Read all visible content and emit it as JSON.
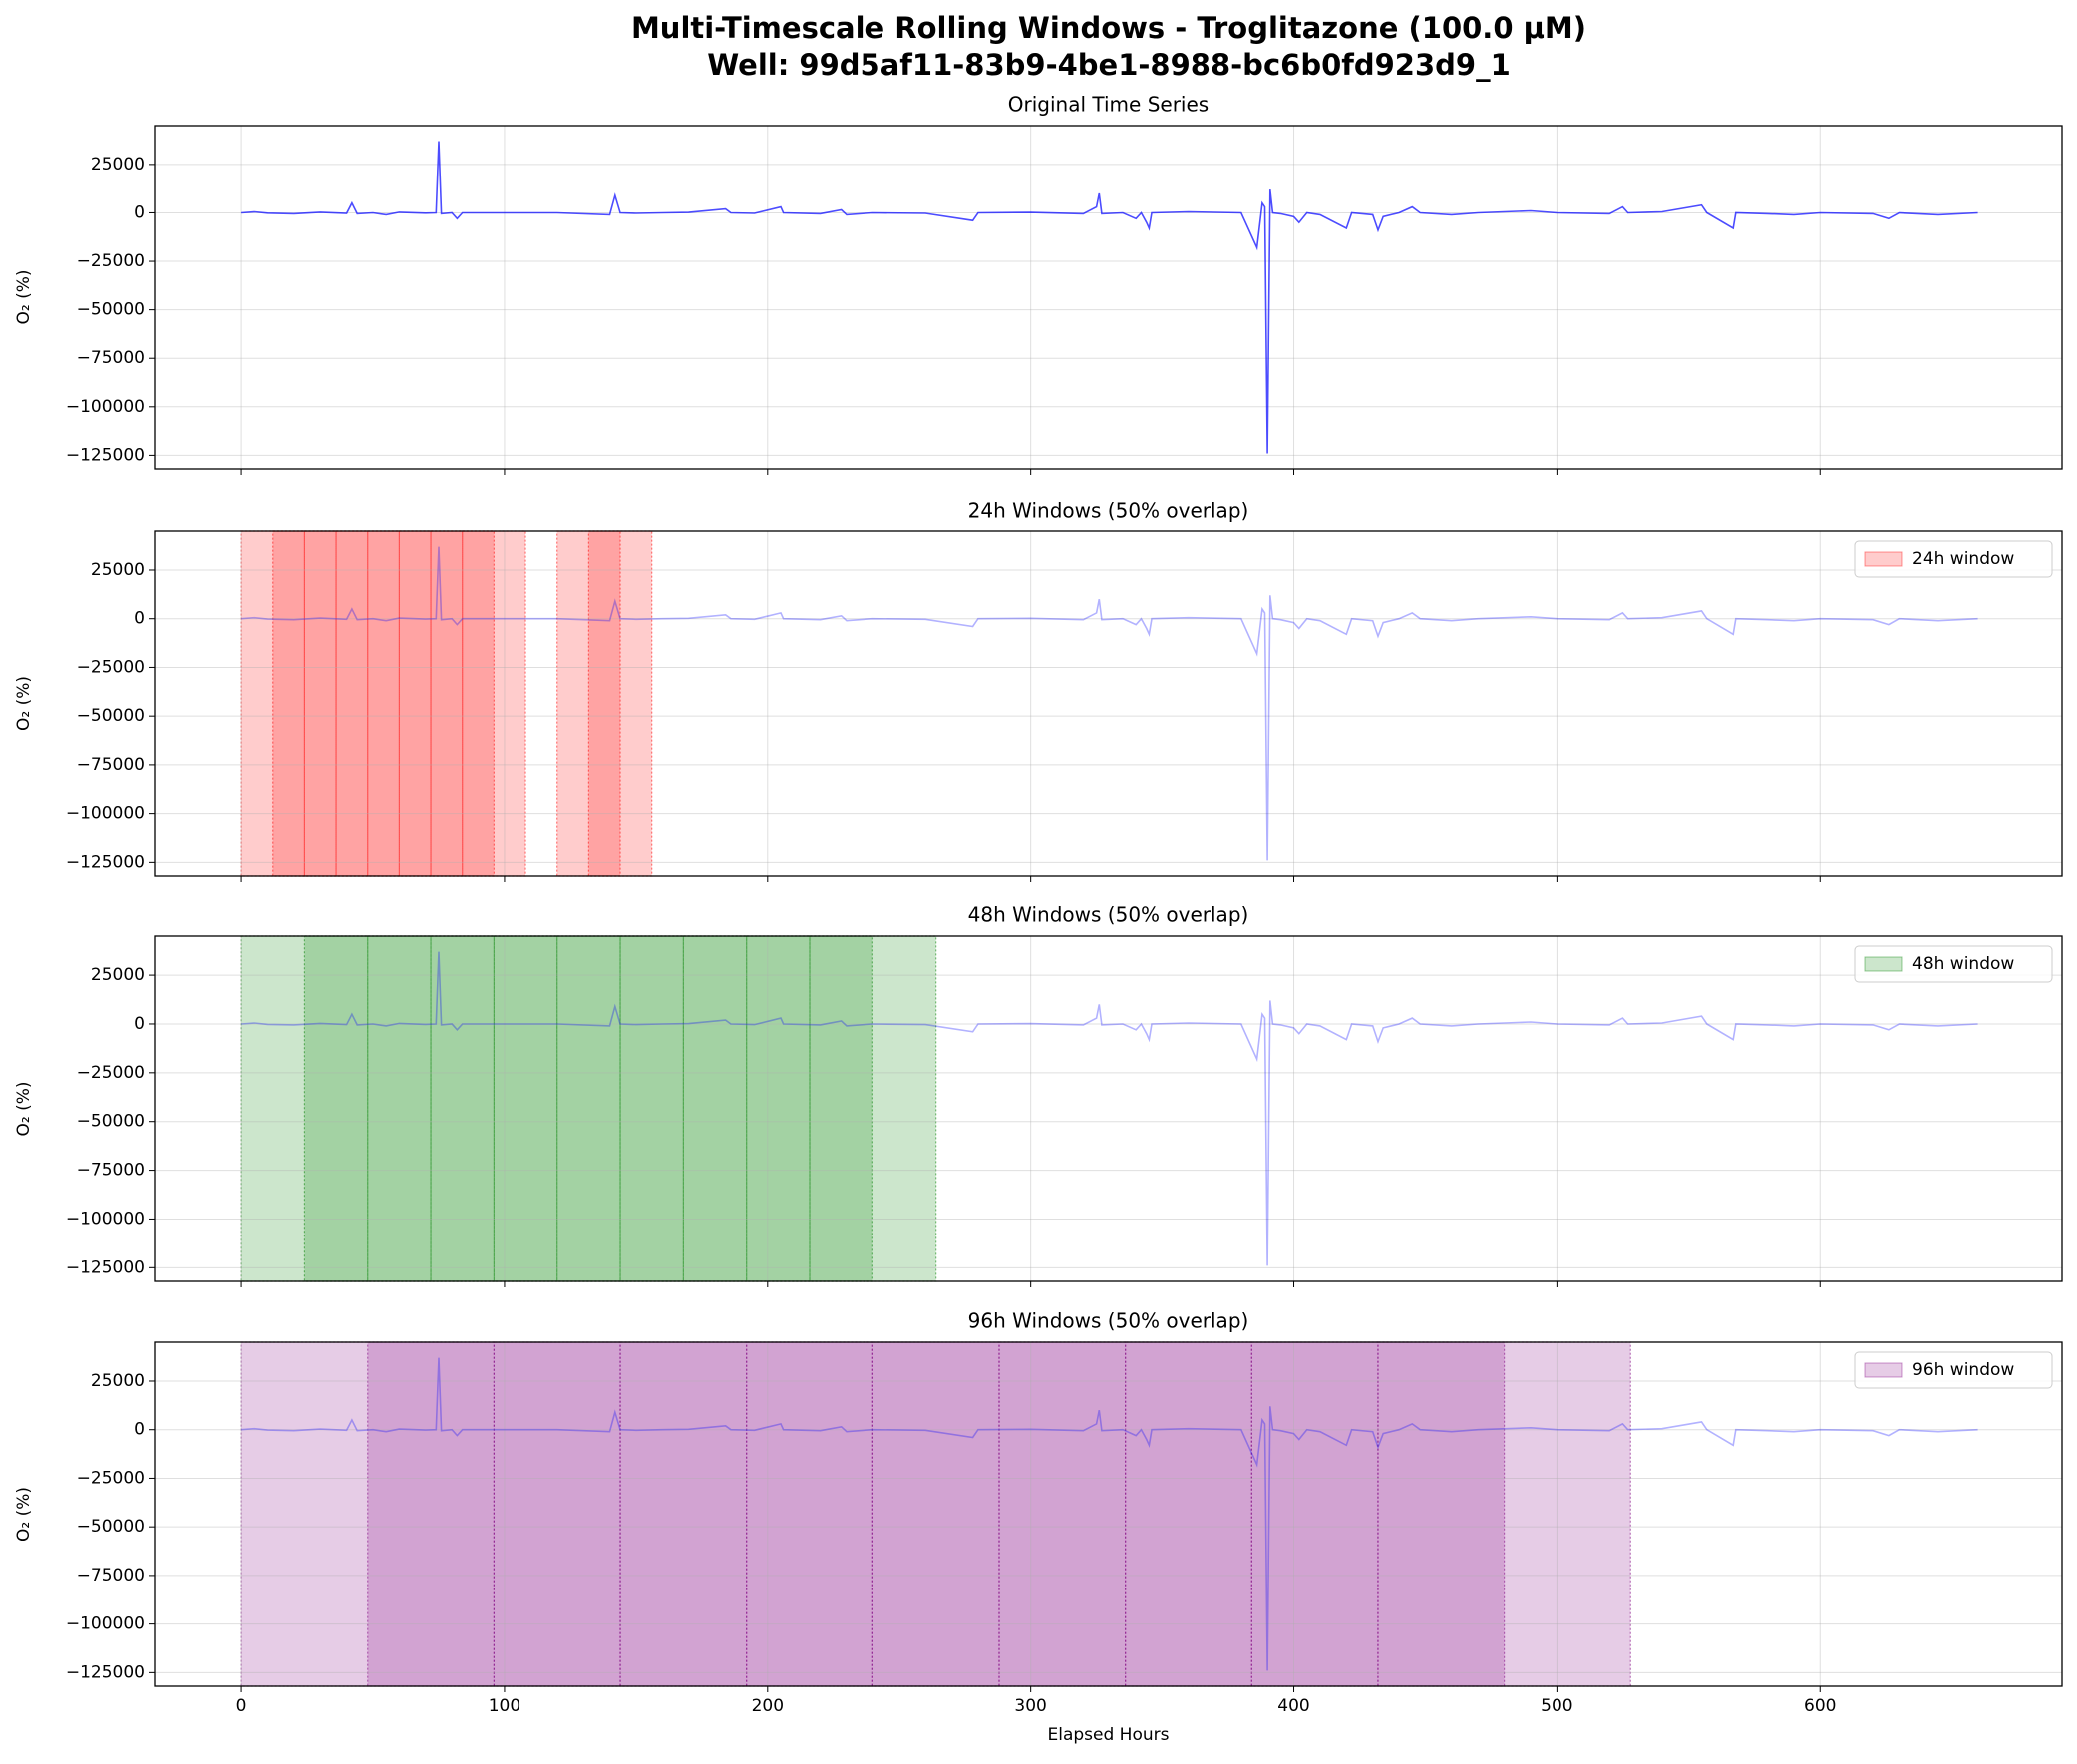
{
  "title": "Multi-Timescale Rolling Windows - Troglitazone (100.0 μM)",
  "subtitle": "Well: 99d5af11-83b9-4be1-8988-bc6b0fd923d9_1",
  "chart_data": [
    {
      "type": "line",
      "title": "Original Time Series",
      "ylabel": "O₂ (%)",
      "x": [
        0,
        5,
        10,
        20,
        30,
        40,
        42,
        44,
        50,
        55,
        60,
        70,
        74,
        75,
        76,
        80,
        82,
        84,
        100,
        120,
        140,
        142,
        144,
        150,
        160,
        170,
        184,
        186,
        195,
        205,
        206,
        220,
        228,
        230,
        240,
        260,
        278,
        280,
        300,
        320,
        325,
        326,
        327,
        335,
        340,
        342,
        344,
        345,
        346,
        360,
        380,
        386,
        388,
        389,
        390,
        391,
        392,
        395,
        400,
        402,
        405,
        410,
        420,
        422,
        430,
        432,
        434,
        440,
        445,
        448,
        460,
        470,
        490,
        500,
        520,
        525,
        527,
        540,
        555,
        557,
        567,
        568,
        580,
        590,
        600,
        620,
        626,
        630,
        645,
        660
      ],
      "series": [
        {
          "name": "O₂",
          "color": "#0000ff",
          "values": [
            0,
            500,
            -200,
            -500,
            300,
            -300,
            5000,
            -500,
            0,
            -1000,
            300,
            -200,
            0,
            37000,
            -500,
            0,
            -3000,
            0,
            0,
            0,
            -1000,
            9000,
            0,
            -300,
            0,
            200,
            2000,
            0,
            -300,
            3000,
            0,
            -500,
            1500,
            -1000,
            0,
            -300,
            -4000,
            0,
            200,
            -500,
            3000,
            10000,
            -500,
            0,
            -3000,
            0,
            -5000,
            -8000,
            0,
            500,
            0,
            -18000,
            5000,
            3000,
            -124000,
            12000,
            0,
            -500,
            -2000,
            -5000,
            0,
            -1000,
            -8000,
            0,
            -1000,
            -9000,
            -2000,
            0,
            3000,
            0,
            -1000,
            0,
            1000,
            0,
            -500,
            3000,
            0,
            500,
            4000,
            0,
            -8000,
            0,
            -500,
            -1000,
            0,
            -500,
            -3000,
            0,
            -1000,
            0
          ]
        }
      ],
      "xlim": [
        -33,
        692
      ],
      "ylim": [
        -132000,
        45000
      ],
      "xticks": [
        0,
        100,
        200,
        300,
        400,
        500,
        600
      ],
      "yticks": [
        {
          "value": -125000,
          "label": "−125000"
        },
        {
          "value": -100000,
          "label": "−100000"
        },
        {
          "value": -75000,
          "label": "−75000"
        },
        {
          "value": -50000,
          "label": "−50000"
        },
        {
          "value": -25000,
          "label": "−25000"
        },
        0,
        25000
      ],
      "grid": true
    },
    {
      "type": "line",
      "title": "24h Windows (50% overlap)",
      "ylabel": "O₂ (%)",
      "window_name": "24h window",
      "window_color": "#ff0000",
      "legend": "upper right",
      "windows": [
        [
          0,
          24
        ],
        [
          12,
          36
        ],
        [
          24,
          48
        ],
        [
          36,
          60
        ],
        [
          48,
          72
        ],
        [
          60,
          84
        ],
        [
          72,
          96
        ],
        [
          84,
          108
        ],
        [
          120,
          144
        ],
        [
          132,
          156
        ]
      ],
      "xlim": [
        -33,
        692
      ],
      "ylim": [
        -132000,
        45000
      ],
      "xticks": [
        0,
        100,
        200,
        300,
        400,
        500,
        600
      ],
      "yticks": [
        {
          "value": -125000,
          "label": "−125000"
        },
        {
          "value": -100000,
          "label": "−100000"
        },
        {
          "value": -75000,
          "label": "−75000"
        },
        {
          "value": -50000,
          "label": "−50000"
        },
        {
          "value": -25000,
          "label": "−25000"
        },
        0,
        25000
      ],
      "grid": true
    },
    {
      "type": "line",
      "title": "48h Windows (50% overlap)",
      "ylabel": "O₂ (%)",
      "window_name": "48h window",
      "window_color": "#008000",
      "legend": "upper right",
      "windows": [
        [
          0,
          48
        ],
        [
          24,
          72
        ],
        [
          48,
          96
        ],
        [
          72,
          120
        ],
        [
          96,
          144
        ],
        [
          120,
          168
        ],
        [
          144,
          192
        ],
        [
          168,
          216
        ],
        [
          192,
          240
        ],
        [
          216,
          264
        ]
      ],
      "xlim": [
        -33,
        692
      ],
      "ylim": [
        -132000,
        45000
      ],
      "xticks": [
        0,
        100,
        200,
        300,
        400,
        500,
        600
      ],
      "yticks": [
        {
          "value": -125000,
          "label": "−125000"
        },
        {
          "value": -100000,
          "label": "−100000"
        },
        {
          "value": -75000,
          "label": "−75000"
        },
        {
          "value": -50000,
          "label": "−50000"
        },
        {
          "value": -25000,
          "label": "−25000"
        },
        0,
        25000
      ],
      "grid": true
    },
    {
      "type": "line",
      "title": "96h Windows (50% overlap)",
      "ylabel": "O₂ (%)",
      "xlabel": "Elapsed Hours",
      "window_name": "96h window",
      "window_color": "#800080",
      "legend": "upper right",
      "windows": [
        [
          0,
          96
        ],
        [
          48,
          144
        ],
        [
          96,
          192
        ],
        [
          144,
          240
        ],
        [
          192,
          288
        ],
        [
          240,
          336
        ],
        [
          288,
          384
        ],
        [
          336,
          432
        ],
        [
          384,
          480
        ],
        [
          432,
          528
        ]
      ],
      "xlim": [
        -33,
        692
      ],
      "ylim": [
        -132000,
        45000
      ],
      "xticks": [
        0,
        100,
        200,
        300,
        400,
        500,
        600
      ],
      "yticks": [
        {
          "value": -125000,
          "label": "−125000"
        },
        {
          "value": -100000,
          "label": "−100000"
        },
        {
          "value": -75000,
          "label": "−75000"
        },
        {
          "value": -50000,
          "label": "−50000"
        },
        {
          "value": -25000,
          "label": "−25000"
        },
        0,
        25000
      ],
      "grid": true
    }
  ]
}
